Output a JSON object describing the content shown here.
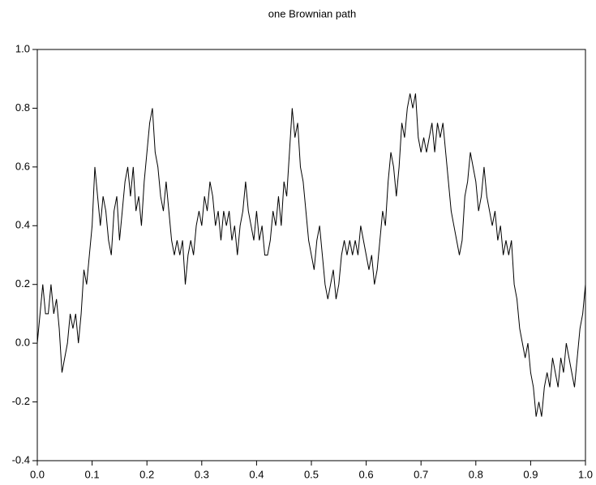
{
  "chart_data": {
    "type": "line",
    "title": "one Brownian path",
    "x": [
      0,
      0.005,
      0.01,
      0.015,
      0.02,
      0.025,
      0.03,
      0.035,
      0.04,
      0.045,
      0.05,
      0.055,
      0.06,
      0.065,
      0.07,
      0.075,
      0.08,
      0.085,
      0.09,
      0.095,
      0.1,
      0.105,
      0.11,
      0.115,
      0.12,
      0.125,
      0.13,
      0.135,
      0.14,
      0.145,
      0.15,
      0.155,
      0.16,
      0.165,
      0.17,
      0.175,
      0.18,
      0.185,
      0.19,
      0.195,
      0.2,
      0.205,
      0.21,
      0.215,
      0.22,
      0.225,
      0.23,
      0.235,
      0.24,
      0.245,
      0.25,
      0.255,
      0.26,
      0.265,
      0.27,
      0.275,
      0.28,
      0.285,
      0.29,
      0.295,
      0.3,
      0.305,
      0.31,
      0.315,
      0.32,
      0.325,
      0.33,
      0.335,
      0.34,
      0.345,
      0.35,
      0.355,
      0.36,
      0.365,
      0.37,
      0.375,
      0.38,
      0.385,
      0.39,
      0.395,
      0.4,
      0.405,
      0.41,
      0.415,
      0.42,
      0.425,
      0.43,
      0.435,
      0.44,
      0.445,
      0.45,
      0.455,
      0.46,
      0.465,
      0.47,
      0.475,
      0.48,
      0.485,
      0.49,
      0.495,
      0.5,
      0.505,
      0.51,
      0.515,
      0.52,
      0.525,
      0.53,
      0.535,
      0.54,
      0.545,
      0.55,
      0.555,
      0.56,
      0.565,
      0.57,
      0.575,
      0.58,
      0.585,
      0.59,
      0.595,
      0.6,
      0.605,
      0.61,
      0.615,
      0.62,
      0.625,
      0.63,
      0.635,
      0.64,
      0.645,
      0.65,
      0.655,
      0.66,
      0.665,
      0.67,
      0.675,
      0.68,
      0.685,
      0.69,
      0.695,
      0.7,
      0.705,
      0.71,
      0.715,
      0.72,
      0.725,
      0.73,
      0.735,
      0.74,
      0.745,
      0.75,
      0.755,
      0.76,
      0.765,
      0.77,
      0.775,
      0.78,
      0.785,
      0.79,
      0.795,
      0.8,
      0.805,
      0.81,
      0.815,
      0.82,
      0.825,
      0.83,
      0.835,
      0.84,
      0.845,
      0.85,
      0.855,
      0.86,
      0.865,
      0.87,
      0.875,
      0.88,
      0.885,
      0.89,
      0.895,
      0.9,
      0.905,
      0.91,
      0.915,
      0.92,
      0.925,
      0.93,
      0.935,
      0.94,
      0.945,
      0.95,
      0.955,
      0.96,
      0.965,
      0.97,
      0.975,
      0.98,
      0.985,
      0.99,
      0.995,
      1.0
    ],
    "series": [
      {
        "color": "#000000",
        "values": [
          0,
          0.1,
          0.2,
          0.1,
          0.1,
          0.2,
          0.1,
          0.15,
          0.05,
          -0.1,
          -0.05,
          0,
          0.1,
          0.05,
          0.1,
          0,
          0.1,
          0.25,
          0.2,
          0.3,
          0.4,
          0.6,
          0.5,
          0.4,
          0.5,
          0.45,
          0.35,
          0.3,
          0.45,
          0.5,
          0.35,
          0.45,
          0.55,
          0.6,
          0.5,
          0.6,
          0.45,
          0.5,
          0.4,
          0.55,
          0.65,
          0.75,
          0.8,
          0.65,
          0.6,
          0.5,
          0.45,
          0.55,
          0.45,
          0.35,
          0.3,
          0.35,
          0.3,
          0.35,
          0.2,
          0.3,
          0.35,
          0.3,
          0.4,
          0.45,
          0.4,
          0.5,
          0.45,
          0.55,
          0.5,
          0.4,
          0.45,
          0.35,
          0.45,
          0.4,
          0.45,
          0.35,
          0.4,
          0.3,
          0.4,
          0.45,
          0.55,
          0.45,
          0.4,
          0.35,
          0.45,
          0.35,
          0.4,
          0.3,
          0.3,
          0.35,
          0.45,
          0.4,
          0.5,
          0.4,
          0.55,
          0.5,
          0.65,
          0.8,
          0.7,
          0.75,
          0.6,
          0.55,
          0.45,
          0.35,
          0.3,
          0.25,
          0.35,
          0.4,
          0.3,
          0.2,
          0.15,
          0.2,
          0.25,
          0.15,
          0.2,
          0.3,
          0.35,
          0.3,
          0.35,
          0.3,
          0.35,
          0.3,
          0.4,
          0.35,
          0.3,
          0.25,
          0.3,
          0.2,
          0.25,
          0.35,
          0.45,
          0.4,
          0.55,
          0.65,
          0.6,
          0.5,
          0.6,
          0.75,
          0.7,
          0.8,
          0.85,
          0.8,
          0.85,
          0.7,
          0.65,
          0.7,
          0.65,
          0.7,
          0.75,
          0.65,
          0.75,
          0.7,
          0.75,
          0.65,
          0.55,
          0.45,
          0.4,
          0.35,
          0.3,
          0.35,
          0.5,
          0.55,
          0.65,
          0.6,
          0.55,
          0.45,
          0.5,
          0.6,
          0.5,
          0.45,
          0.4,
          0.45,
          0.35,
          0.4,
          0.3,
          0.35,
          0.3,
          0.35,
          0.2,
          0.15,
          0.05,
          0,
          -0.05,
          0,
          -0.1,
          -0.15,
          -0.25,
          -0.2,
          -0.25,
          -0.15,
          -0.1,
          -0.15,
          -0.05,
          -0.1,
          -0.15,
          -0.05,
          -0.1,
          0,
          -0.05,
          -0.1,
          -0.15,
          -0.05,
          0.05,
          0.1,
          0.2
        ]
      }
    ],
    "xlim": [
      0,
      1
    ],
    "ylim": [
      -0.4,
      1
    ],
    "xticks": [
      {
        "value": 0,
        "label": "0.0"
      },
      0.1,
      0.2,
      0.3,
      0.4,
      0.5,
      0.6,
      0.7,
      0.8,
      0.9,
      {
        "value": 1,
        "label": "1.0"
      }
    ],
    "yticks": [
      -0.4,
      -0.2,
      {
        "value": 0,
        "label": "0.0"
      },
      0.2,
      0.4,
      0.6,
      0.8,
      {
        "value": 1,
        "label": "1.0"
      }
    ],
    "grid": false
  }
}
